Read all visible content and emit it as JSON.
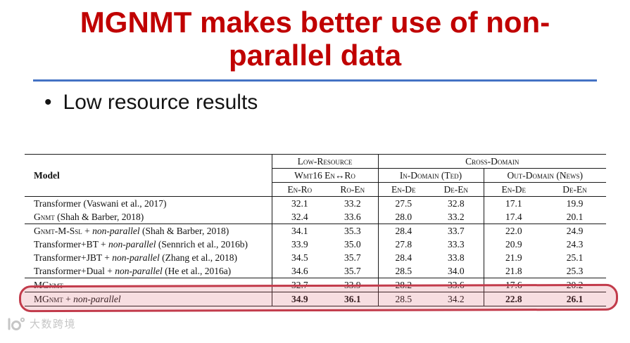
{
  "theme": {
    "title_color": "#c00000",
    "rule_color": "#4472c4",
    "highlight_color": "#c23b4b"
  },
  "slide": {
    "title_lines": [
      "MGNMT makes better use of non-",
      "parallel data"
    ],
    "bullet": {
      "marker": "•",
      "text": "Low resource results"
    }
  },
  "table": {
    "header": {
      "model": "Model",
      "groups": {
        "low": "Low-Resource",
        "cross": "Cross-Domain"
      },
      "subgroups": {
        "wmt": "Wmt16 En↔Ro",
        "in_domain": "In-Domain (Ted)",
        "out_domain": "Out-Domain (News)"
      },
      "cols": [
        "En-Ro",
        "Ro-En",
        "En-De",
        "De-En",
        "En-De",
        "De-En"
      ]
    },
    "rows": [
      {
        "model": [
          {
            "t": "Transformer (Vaswani et al., 2017)",
            "s": "pl"
          }
        ],
        "values": [
          "32.1",
          "33.2",
          "27.5",
          "32.8",
          "17.1",
          "19.9"
        ]
      },
      {
        "model": [
          {
            "t": "Gnmt",
            "s": "sc"
          },
          {
            "t": " (Shah & Barber, 2018)",
            "s": "pl"
          }
        ],
        "values": [
          "32.4",
          "33.6",
          "28.0",
          "33.2",
          "17.4",
          "20.1"
        ],
        "sep_after": true
      },
      {
        "model": [
          {
            "t": "Gnmt-M-Ssl",
            "s": "sc"
          },
          {
            "t": " + ",
            "s": "pl"
          },
          {
            "t": "non-parallel",
            "s": "it"
          },
          {
            "t": " (Shah & Barber, 2018)",
            "s": "pl"
          }
        ],
        "values": [
          "34.1",
          "35.3",
          "28.4",
          "33.7",
          "22.0",
          "24.9"
        ]
      },
      {
        "model": [
          {
            "t": "Transformer+BT + ",
            "s": "pl"
          },
          {
            "t": "non-parallel",
            "s": "it"
          },
          {
            "t": " (Sennrich et al., 2016b)",
            "s": "pl"
          }
        ],
        "values": [
          "33.9",
          "35.0",
          "27.8",
          "33.3",
          "20.9",
          "24.3"
        ]
      },
      {
        "model": [
          {
            "t": "Transformer+JBT + ",
            "s": "pl"
          },
          {
            "t": "non-parallel",
            "s": "it"
          },
          {
            "t": " (Zhang et al., 2018)",
            "s": "pl"
          }
        ],
        "values": [
          "34.5",
          "35.7",
          "28.4",
          "33.8",
          "21.9",
          "25.1"
        ]
      },
      {
        "model": [
          {
            "t": "Transformer+Dual + ",
            "s": "pl"
          },
          {
            "t": "non-parallel",
            "s": "it"
          },
          {
            "t": " (He et al., 2016a)",
            "s": "pl"
          }
        ],
        "values": [
          "34.6",
          "35.7",
          "28.5",
          "34.0",
          "21.8",
          "25.3"
        ],
        "sep_after": true
      },
      {
        "model": [
          {
            "t": "MGnmt",
            "s": "sc"
          }
        ],
        "values": [
          "32.7",
          "33.9",
          "28.2",
          "33.6",
          "17.6",
          "20.2"
        ],
        "sep_after": true
      },
      {
        "model": [
          {
            "t": "MGnmt",
            "s": "sc"
          },
          {
            "t": " + ",
            "s": "pl"
          },
          {
            "t": "non-parallel",
            "s": "it"
          }
        ],
        "values": [
          "34.9",
          "36.1",
          "28.5",
          "34.2",
          "22.8",
          "26.1"
        ],
        "bold": [
          true,
          true,
          false,
          false,
          true,
          true
        ],
        "highlight": true
      }
    ]
  },
  "watermark": {
    "text": "大数跨境"
  }
}
